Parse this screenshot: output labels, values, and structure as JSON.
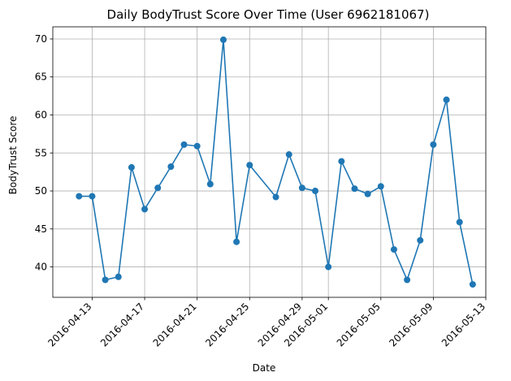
{
  "chart_data": {
    "type": "line",
    "title": "Daily BodyTrust Score Over Time (User 6962181067)",
    "xlabel": "Date",
    "ylabel": "BodyTrust Score",
    "x_ticks": [
      "2016-04-13",
      "2016-04-17",
      "2016-04-21",
      "2016-04-25",
      "2016-04-29",
      "2016-05-01",
      "2016-05-05",
      "2016-05-09",
      "2016-05-13"
    ],
    "y_ticks": [
      40,
      45,
      50,
      55,
      60,
      65,
      70
    ],
    "ylim": [
      36.0,
      71.6
    ],
    "xlim": [
      "2016-04-10",
      "2016-05-13"
    ],
    "grid": true,
    "color": "#1f77b4",
    "series": [
      {
        "name": "",
        "points": [
          {
            "x": "2016-04-12",
            "y": 49.3
          },
          {
            "x": "2016-04-13",
            "y": 49.3
          },
          {
            "x": "2016-04-14",
            "y": 38.3
          },
          {
            "x": "2016-04-15",
            "y": 38.7
          },
          {
            "x": "2016-04-16",
            "y": 53.1
          },
          {
            "x": "2016-04-17",
            "y": 47.6
          },
          {
            "x": "2016-04-18",
            "y": 50.4
          },
          {
            "x": "2016-04-19",
            "y": 53.2
          },
          {
            "x": "2016-04-20",
            "y": 56.1
          },
          {
            "x": "2016-04-21",
            "y": 55.9
          },
          {
            "x": "2016-04-22",
            "y": 50.9
          },
          {
            "x": "2016-04-23",
            "y": 69.9
          },
          {
            "x": "2016-04-24",
            "y": 43.3
          },
          {
            "x": "2016-04-25",
            "y": 53.4
          },
          {
            "x": "2016-04-27",
            "y": 49.2
          },
          {
            "x": "2016-04-28",
            "y": 54.8
          },
          {
            "x": "2016-04-29",
            "y": 50.4
          },
          {
            "x": "2016-04-30",
            "y": 50.0
          },
          {
            "x": "2016-05-01",
            "y": 40.0
          },
          {
            "x": "2016-05-02",
            "y": 53.9
          },
          {
            "x": "2016-05-03",
            "y": 50.3
          },
          {
            "x": "2016-05-04",
            "y": 49.6
          },
          {
            "x": "2016-05-05",
            "y": 50.6
          },
          {
            "x": "2016-05-06",
            "y": 42.3
          },
          {
            "x": "2016-05-07",
            "y": 38.3
          },
          {
            "x": "2016-05-08",
            "y": 43.5
          },
          {
            "x": "2016-05-09",
            "y": 56.1
          },
          {
            "x": "2016-05-10",
            "y": 62.0
          },
          {
            "x": "2016-05-11",
            "y": 45.9
          },
          {
            "x": "2016-05-12",
            "y": 37.7
          }
        ]
      }
    ]
  }
}
